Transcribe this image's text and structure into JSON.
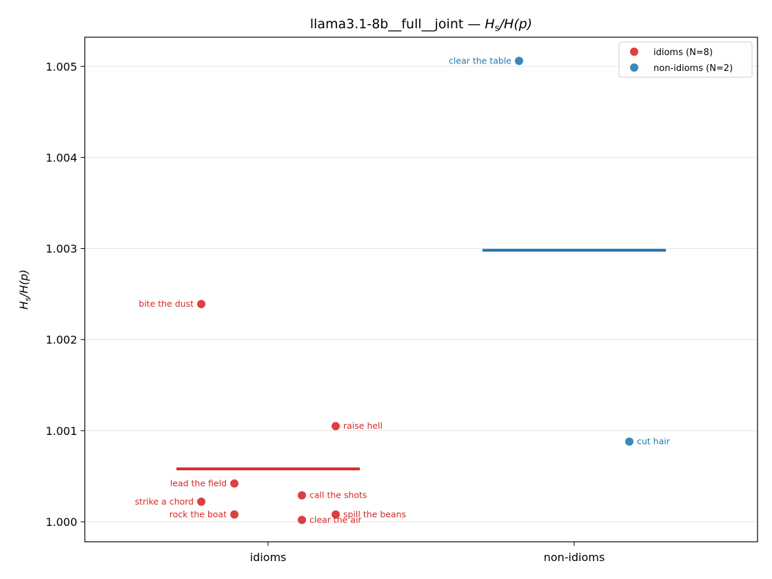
{
  "chart_data": {
    "type": "scatter",
    "title_prefix": "llama3.1-8b__full__joint — ",
    "title_math": {
      "H": "H",
      "sub": "s",
      "rest": "/H(p)"
    },
    "ylabel_math": {
      "H": "H",
      "sub": "s",
      "rest": "/H(p)"
    },
    "ylim": [
      0.99978,
      1.00532
    ],
    "yticks": [
      "1.000",
      "1.001",
      "1.002",
      "1.003",
      "1.004",
      "1.005"
    ],
    "categories": [
      "idioms",
      "non-idioms"
    ],
    "grid": "horizontal",
    "legend_position": "top-right",
    "series": [
      {
        "name": "idioms (N=8)",
        "color": "#d62728",
        "mean": 1.00058,
        "points": [
          {
            "label": "bite the dust",
            "y": 1.00239,
            "label_side": "left"
          },
          {
            "label": "raise hell",
            "y": 1.00105,
            "label_side": "right"
          },
          {
            "label": "lead the field",
            "y": 1.00042,
            "label_side": "left"
          },
          {
            "label": "call the shots",
            "y": 1.00029,
            "label_side": "right"
          },
          {
            "label": "strike a chord",
            "y": 1.00022,
            "label_side": "left"
          },
          {
            "label": "rock the boat",
            "y": 1.00008,
            "label_side": "left"
          },
          {
            "label": "spill the beans",
            "y": 1.00008,
            "label_side": "right"
          },
          {
            "label": "clear the air",
            "y": 1.00002,
            "label_side": "right"
          }
        ]
      },
      {
        "name": "non-idioms (N=2)",
        "color": "#1f77b4",
        "mean": 1.00298,
        "points": [
          {
            "label": "clear the table",
            "y": 1.00506,
            "label_side": "left"
          },
          {
            "label": "cut hair",
            "y": 1.00088,
            "label_side": "right"
          }
        ]
      }
    ]
  }
}
